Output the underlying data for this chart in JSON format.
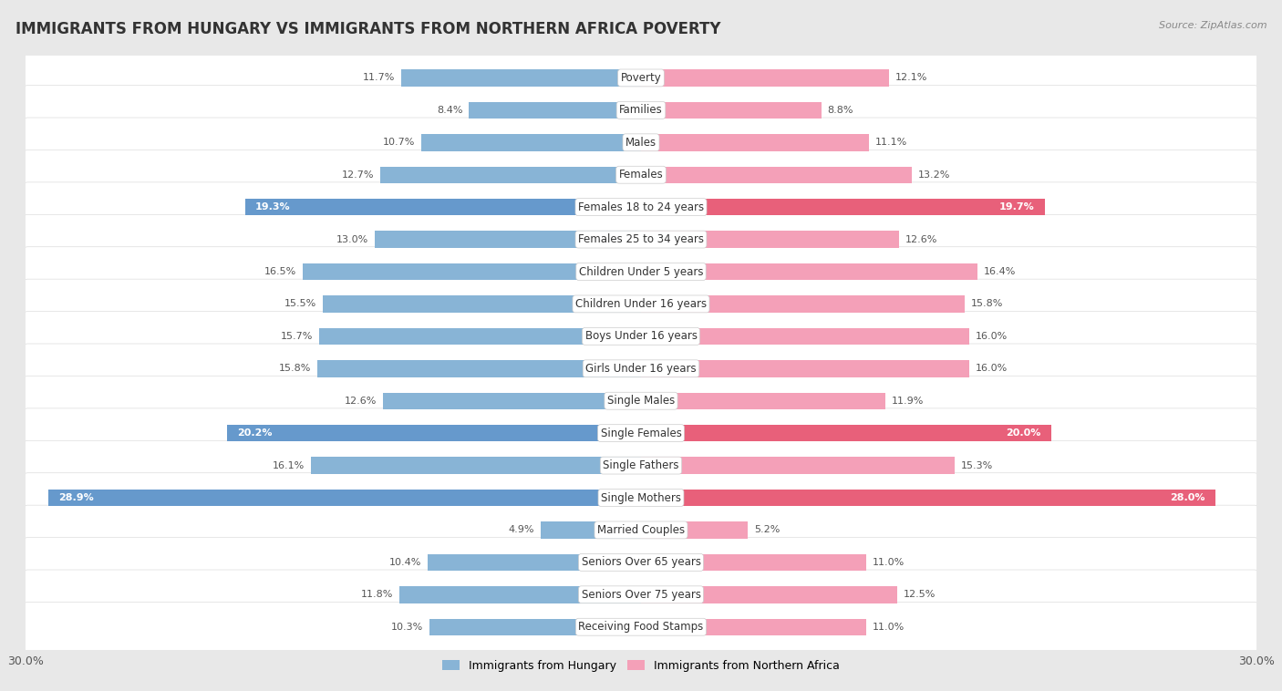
{
  "title": "IMMIGRANTS FROM HUNGARY VS IMMIGRANTS FROM NORTHERN AFRICA POVERTY",
  "source": "Source: ZipAtlas.com",
  "categories": [
    "Poverty",
    "Families",
    "Males",
    "Females",
    "Females 18 to 24 years",
    "Females 25 to 34 years",
    "Children Under 5 years",
    "Children Under 16 years",
    "Boys Under 16 years",
    "Girls Under 16 years",
    "Single Males",
    "Single Females",
    "Single Fathers",
    "Single Mothers",
    "Married Couples",
    "Seniors Over 65 years",
    "Seniors Over 75 years",
    "Receiving Food Stamps"
  ],
  "hungary_values": [
    11.7,
    8.4,
    10.7,
    12.7,
    19.3,
    13.0,
    16.5,
    15.5,
    15.7,
    15.8,
    12.6,
    20.2,
    16.1,
    28.9,
    4.9,
    10.4,
    11.8,
    10.3
  ],
  "northern_africa_values": [
    12.1,
    8.8,
    11.1,
    13.2,
    19.7,
    12.6,
    16.4,
    15.8,
    16.0,
    16.0,
    11.9,
    20.0,
    15.3,
    28.0,
    5.2,
    11.0,
    12.5,
    11.0
  ],
  "hungary_color": "#88b4d6",
  "northern_africa_color": "#f4a0b8",
  "highlight_indices": [
    4,
    11,
    13
  ],
  "hungary_highlight_color": "#6699cc",
  "northern_africa_highlight_color": "#e8607a",
  "label_hungary": "Immigrants from Hungary",
  "label_northern_africa": "Immigrants from Northern Africa",
  "xlim": 30.0,
  "fig_bg": "#e8e8e8",
  "row_bg": "#f5f5f5",
  "row_bg_alt": "#ebebeb",
  "title_fontsize": 12,
  "label_fontsize": 8.5,
  "value_fontsize": 8.0
}
